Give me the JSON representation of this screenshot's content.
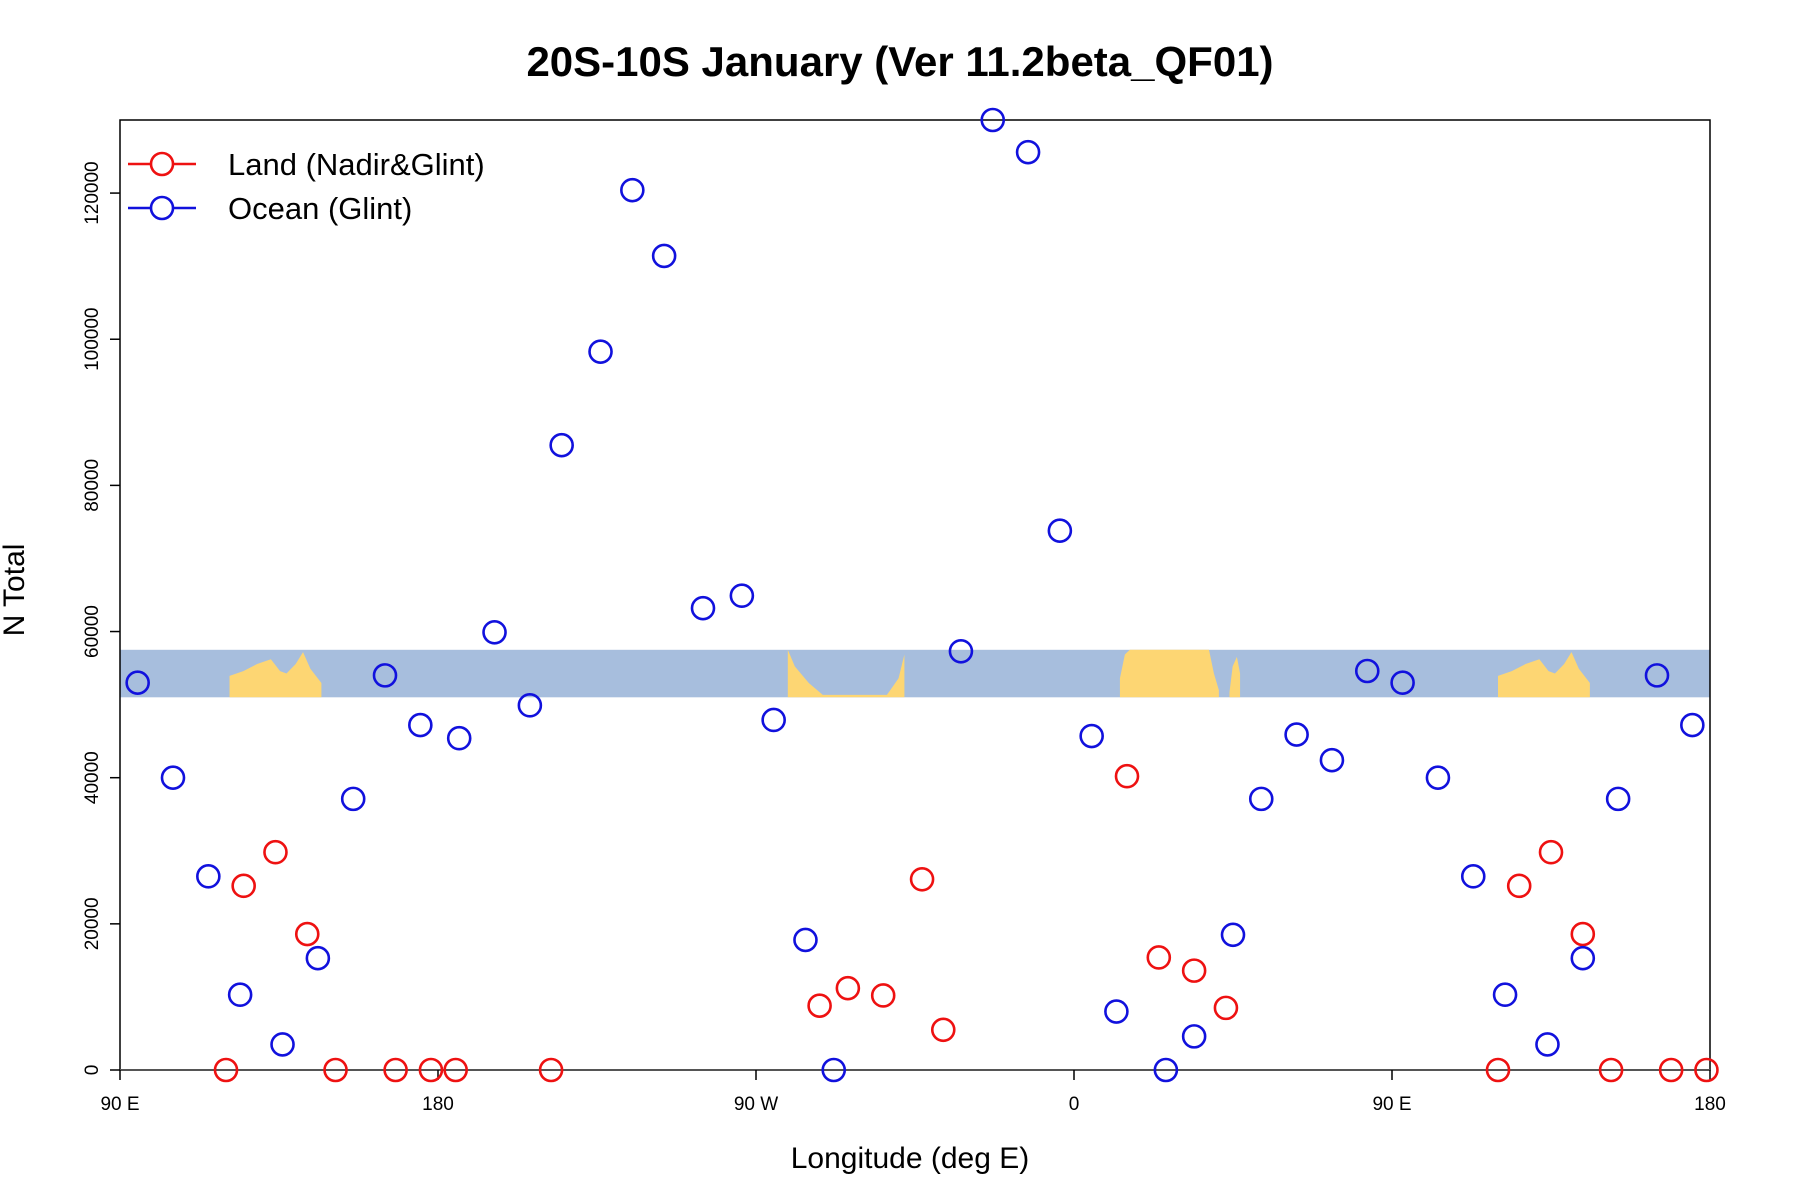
{
  "chart_data": {
    "type": "scatter",
    "title": "20S-10S January (Ver 11.2beta_QF01)",
    "xlabel": "Longitude (deg E)",
    "ylabel": "N Total",
    "xlim": [
      90,
      540
    ],
    "ylim": [
      0,
      130000
    ],
    "x_ticks": [
      {
        "value": 90,
        "label": "90 E"
      },
      {
        "value": 180,
        "label": "180"
      },
      {
        "value": 270,
        "label": "90 W"
      },
      {
        "value": 360,
        "label": "0"
      },
      {
        "value": 450,
        "label": "90 E"
      },
      {
        "value": 540,
        "label": "180"
      }
    ],
    "y_ticks": [
      {
        "value": 0,
        "label": "0"
      },
      {
        "value": 20000,
        "label": "20000"
      },
      {
        "value": 40000,
        "label": "40000"
      },
      {
        "value": 60000,
        "label": "60000"
      },
      {
        "value": 80000,
        "label": "80000"
      },
      {
        "value": 100000,
        "label": "100000"
      },
      {
        "value": 120000,
        "label": "120000"
      }
    ],
    "legend_position": "top-left",
    "map_strip": {
      "ymin": 51000,
      "ymax": 57500,
      "ocean_color": "#a7bedd",
      "land_color": "#fdd673"
    },
    "series": [
      {
        "name": "Land (Nadir&Glint)",
        "color": "#ee1111",
        "points": [
          [
            120,
            0
          ],
          [
            125,
            25200
          ],
          [
            134,
            29800
          ],
          [
            143,
            18600
          ],
          [
            151,
            0
          ],
          [
            168,
            0
          ],
          [
            178,
            0
          ],
          [
            185,
            0
          ],
          [
            212,
            0
          ],
          [
            288,
            8800
          ],
          [
            296,
            11200
          ],
          [
            306,
            10200
          ],
          [
            317,
            26100
          ],
          [
            323,
            5500
          ],
          [
            375,
            40200
          ],
          [
            384,
            15400
          ],
          [
            394,
            13600
          ],
          [
            403,
            8500
          ],
          [
            480,
            0
          ],
          [
            486,
            25200
          ],
          [
            495,
            29800
          ],
          [
            504,
            18600
          ],
          [
            512,
            0
          ],
          [
            529,
            0
          ],
          [
            539,
            0
          ]
        ]
      },
      {
        "name": "Ocean (Glint)",
        "color": "#1111dd",
        "points": [
          [
            95,
            53000
          ],
          [
            105,
            40000
          ],
          [
            115,
            26500
          ],
          [
            124,
            10300
          ],
          [
            136,
            3500
          ],
          [
            146,
            15300
          ],
          [
            156,
            37100
          ],
          [
            165,
            54000
          ],
          [
            175,
            47200
          ],
          [
            186,
            45400
          ],
          [
            196,
            59900
          ],
          [
            206,
            49900
          ],
          [
            215,
            85500
          ],
          [
            226,
            98300
          ],
          [
            235,
            120400
          ],
          [
            244,
            111400
          ],
          [
            255,
            63200
          ],
          [
            266,
            64900
          ],
          [
            275,
            47900
          ],
          [
            284,
            17800
          ],
          [
            292,
            0
          ],
          [
            328,
            57300
          ],
          [
            337,
            130000
          ],
          [
            347,
            125600
          ],
          [
            356,
            73800
          ],
          [
            365,
            45700
          ],
          [
            372,
            8000
          ],
          [
            386,
            0
          ],
          [
            394,
            4600
          ],
          [
            405,
            18500
          ],
          [
            413,
            37100
          ],
          [
            423,
            45900
          ],
          [
            433,
            42400
          ],
          [
            443,
            54600
          ],
          [
            453,
            53000
          ],
          [
            463,
            40000
          ],
          [
            473,
            26500
          ],
          [
            482,
            10300
          ],
          [
            494,
            3500
          ],
          [
            504,
            15300
          ],
          [
            514,
            37100
          ],
          [
            525,
            54000
          ],
          [
            535,
            47200
          ]
        ]
      }
    ]
  }
}
